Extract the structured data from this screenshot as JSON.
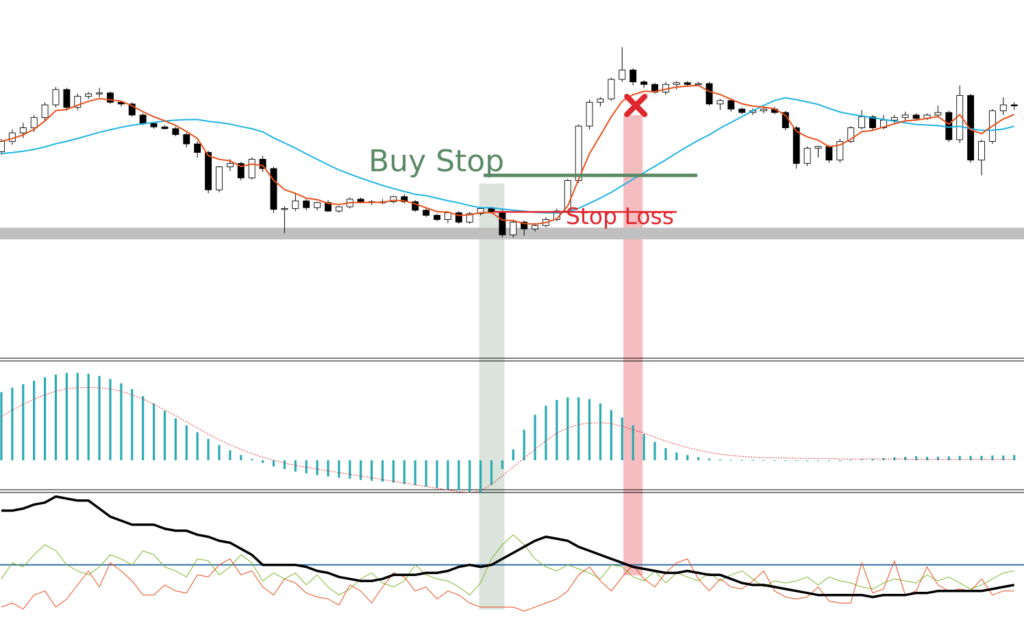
{
  "colors": {
    "background": "#ffffff",
    "candle_body_bull": "#ffffff",
    "candle_body_bear": "#000000",
    "candle_outline": "#000000",
    "ema_fast": "#e8501a",
    "ema_slow": "#1fb3e6",
    "support_band": "#c0c0c0",
    "entry_highlight": "#d8e3da",
    "exit_highlight": "#f4b9bd",
    "buy_stop": "#5a8a65",
    "stop_loss": "#e0262e",
    "macd_histogram": "#2aabb0",
    "macd_signal": "#d93030",
    "adx_main": "#000000",
    "adx_plus_di": "#7fb52b",
    "adx_minus_di": "#e84a1a",
    "adx_level": "#2f6fa6",
    "panel_separator": "#000000"
  },
  "annotations": {
    "buy_stop_label": "Buy Stop",
    "stop_loss_label": "Stop Loss",
    "exit_marker_icon": "cross-icon"
  },
  "chart_data": [
    {
      "type": "candlestick",
      "panel": "price",
      "bar_count": 94,
      "series": [
        {
          "kind": "candles",
          "ohlc": [
            [
              100,
              101.5,
              99.6,
              101.2
            ],
            [
              101.2,
              102.6,
              100.8,
              102.2
            ],
            [
              102.2,
              103.4,
              101.6,
              102.8
            ],
            [
              102.8,
              104.3,
              102.3,
              104
            ],
            [
              104,
              105.8,
              103.6,
              105.5
            ],
            [
              105.5,
              107.6,
              105.2,
              107.3
            ],
            [
              107.3,
              107.5,
              104.8,
              105.2
            ],
            [
              105.2,
              106.8,
              104.9,
              106.5
            ],
            [
              106.5,
              107,
              106.2,
              106.8
            ],
            [
              106.8,
              107.5,
              106.4,
              106.9
            ],
            [
              106.9,
              107.1,
              105.6,
              105.8
            ],
            [
              105.8,
              106,
              105.3,
              105.6
            ],
            [
              105.6,
              105.8,
              104.1,
              104.3
            ],
            [
              104.3,
              104.5,
              103.1,
              103.3
            ],
            [
              103.3,
              103.5,
              102.7,
              102.9
            ],
            [
              102.9,
              103.1,
              102.6,
              102.7
            ],
            [
              102.7,
              102.9,
              101.8,
              102
            ],
            [
              102,
              102.2,
              100.5,
              100.9
            ],
            [
              100.9,
              101.2,
              99.3,
              99.9
            ],
            [
              99.9,
              100.1,
              95.1,
              95.5
            ],
            [
              95.5,
              98.3,
              95.2,
              98.2
            ],
            [
              98.2,
              99.1,
              97.7,
              98.6
            ],
            [
              98.6,
              98.8,
              96.6,
              96.9
            ],
            [
              96.9,
              99.3,
              96.7,
              99.1
            ],
            [
              99.1,
              99.5,
              97.6,
              98
            ],
            [
              98,
              98.2,
              92.8,
              93.2
            ],
            [
              93.2,
              93.6,
              90.4,
              93.3
            ],
            [
              93.3,
              95,
              93,
              94.2
            ],
            [
              94.2,
              94.4,
              93.1,
              93.4
            ],
            [
              93.4,
              94.1,
              93.1,
              94
            ],
            [
              94,
              94.3,
              92.9,
              93
            ],
            [
              93,
              93.6,
              92.8,
              93.5
            ],
            [
              93.5,
              94.6,
              93.3,
              94.4
            ],
            [
              94.4,
              94.6,
              93.9,
              94.1
            ],
            [
              94.1,
              94.3,
              93.7,
              94
            ],
            [
              94,
              94.4,
              93.8,
              94.1
            ],
            [
              94.1,
              94.8,
              93.9,
              94.7
            ],
            [
              94.7,
              95,
              93.9,
              94.1
            ],
            [
              94.1,
              94.3,
              92.9,
              93.1
            ],
            [
              93.1,
              93.3,
              92.3,
              92.5
            ],
            [
              92.5,
              92.7,
              91.8,
              92
            ],
            [
              92,
              93,
              91.6,
              92.8
            ],
            [
              92.8,
              93,
              91.5,
              91.7
            ],
            [
              91.7,
              92.9,
              91.5,
              92.7
            ],
            [
              92.7,
              93.5,
              92.5,
              93.3
            ],
            [
              93.3,
              93.5,
              92.7,
              92.9
            ],
            [
              92.9,
              93.3,
              89.9,
              90.2
            ],
            [
              90.2,
              92,
              89.9,
              91.7
            ],
            [
              91.7,
              91.9,
              90.1,
              90.9
            ],
            [
              90.9,
              91.6,
              90.6,
              91.3
            ],
            [
              91.3,
              92.3,
              91.1,
              92
            ],
            [
              92,
              93.3,
              91.8,
              93
            ],
            [
              93,
              96.8,
              92.7,
              96.6
            ],
            [
              96.6,
              103.2,
              96.3,
              103
            ],
            [
              103,
              106.1,
              102.6,
              105.8
            ],
            [
              105.8,
              106.4,
              105.3,
              106.2
            ],
            [
              106.2,
              108.7,
              106,
              108.5
            ],
            [
              108.5,
              112.3,
              108.2,
              109.6
            ],
            [
              109.6,
              109.8,
              107.8,
              108.2
            ],
            [
              108.2,
              108.4,
              107.5,
              107.9
            ],
            [
              107.9,
              108.1,
              106.8,
              107
            ],
            [
              107,
              108.2,
              106.7,
              107.9
            ],
            [
              107.9,
              108.3,
              107.3,
              108.1
            ],
            [
              108.1,
              108.3,
              107.6,
              107.9
            ],
            [
              107.9,
              108.2,
              107.7,
              108
            ],
            [
              108,
              108.2,
              105.4,
              105.6
            ],
            [
              105.6,
              106.2,
              104.9,
              106
            ],
            [
              106,
              106.2,
              104.7,
              105
            ],
            [
              105,
              105.2,
              104.4,
              104.6
            ],
            [
              104.6,
              105.1,
              104.3,
              104.8
            ],
            [
              104.8,
              105.2,
              104.5,
              105
            ],
            [
              105,
              105.3,
              104.4,
              104.6
            ],
            [
              104.6,
              104.8,
              102.5,
              102.8
            ],
            [
              102.8,
              103,
              98,
              98.6
            ],
            [
              98.6,
              100.6,
              98.3,
              100.4
            ],
            [
              100.4,
              100.7,
              99.3,
              100.6
            ],
            [
              100.6,
              100.8,
              98.7,
              99
            ],
            [
              99,
              101.5,
              98.7,
              101.2
            ],
            [
              101.2,
              103,
              101,
              102.8
            ],
            [
              102.8,
              104.9,
              102.6,
              104.1
            ],
            [
              104.1,
              104.3,
              102.5,
              102.8
            ],
            [
              102.8,
              104.3,
              102.6,
              103.7
            ],
            [
              103.7,
              104.3,
              103.3,
              104
            ],
            [
              104,
              104.7,
              103.7,
              104.3
            ],
            [
              104.3,
              104.5,
              103.6,
              103.9
            ],
            [
              103.9,
              104.5,
              103.7,
              104.3
            ],
            [
              104.3,
              105.4,
              104,
              104.6
            ],
            [
              104.6,
              104.8,
              101.1,
              101.4
            ],
            [
              101.4,
              107.8,
              101,
              106.6
            ],
            [
              106.6,
              106.8,
              98.7,
              99
            ],
            [
              99,
              101.4,
              97.2,
              101.2
            ],
            [
              101.2,
              105,
              100.9,
              104.8
            ],
            [
              104.8,
              106.4,
              104.3,
              105.5
            ],
            [
              105.5,
              105.8,
              104.9,
              105.4
            ]
          ]
        },
        {
          "name": "",
          "kind": "ema",
          "period": 5
        },
        {
          "name": "",
          "kind": "sma",
          "period": 20
        }
      ],
      "support_level": 90.4,
      "buy_stop_level": 97.2,
      "stop_loss_level": 92.9,
      "entry_bar": 45,
      "exit_bar": 58
    },
    {
      "type": "bar",
      "panel": "macd",
      "histogram": [
        1.56,
        1.66,
        1.74,
        1.82,
        1.9,
        1.96,
        2,
        2,
        1.98,
        1.93,
        1.86,
        1.76,
        1.63,
        1.47,
        1.3,
        1.13,
        0.96,
        0.8,
        0.64,
        0.49,
        0.35,
        0.23,
        0.12,
        0.03,
        -0.06,
        -0.14,
        -0.2,
        -0.26,
        -0.3,
        -0.34,
        -0.37,
        -0.4,
        -0.42,
        -0.45,
        -0.47,
        -0.49,
        -0.51,
        -0.54,
        -0.57,
        -0.6,
        -0.63,
        -0.66,
        -0.69,
        -0.73,
        -0.76,
        -0.56,
        -0.2,
        0.25,
        0.7,
        1.04,
        1.25,
        1.38,
        1.44,
        1.44,
        1.4,
        1.3,
        1.15,
        0.98,
        0.8,
        0.6,
        0.42,
        0.28,
        0.18,
        0.12,
        0.07,
        0.04,
        0.02,
        0.01,
        0.01,
        0.01,
        0,
        0,
        0,
        0,
        0,
        0,
        0,
        0,
        0.01,
        0.02,
        0.03,
        0.05,
        0.07,
        0.08,
        0.09,
        0.08,
        0.08,
        0.09,
        0.1,
        0.1,
        0.1,
        0.11,
        0.11,
        0.12
      ],
      "signal": [
        1,
        1.15,
        1.28,
        1.4,
        1.5,
        1.58,
        1.64,
        1.66,
        1.67,
        1.66,
        1.63,
        1.58,
        1.5,
        1.4,
        1.28,
        1.15,
        1.02,
        0.88,
        0.74,
        0.6,
        0.47,
        0.35,
        0.25,
        0.15,
        0.07,
        0,
        -0.06,
        -0.12,
        -0.16,
        -0.2,
        -0.24,
        -0.28,
        -0.32,
        -0.36,
        -0.4,
        -0.44,
        -0.48,
        -0.52,
        -0.56,
        -0.6,
        -0.64,
        -0.68,
        -0.72,
        -0.74,
        -0.7,
        -0.55,
        -0.36,
        -0.15,
        0.05,
        0.25,
        0.45,
        0.62,
        0.74,
        0.82,
        0.85,
        0.86,
        0.84,
        0.78,
        0.7,
        0.62,
        0.53,
        0.44,
        0.36,
        0.29,
        0.23,
        0.18,
        0.14,
        0.11,
        0.09,
        0.07,
        0.06,
        0.06,
        0.05,
        0.05,
        0.04,
        0.04,
        0.04,
        0.03,
        0.03,
        0.03,
        0.03,
        0.03,
        0.03,
        0.03,
        0.02,
        0.02,
        0.02,
        0.02,
        0.02,
        0.02,
        0.02,
        0.02,
        0.02,
        0.02
      ],
      "ylim": [
        -0.8,
        2.2
      ]
    },
    {
      "type": "line",
      "panel": "adx",
      "ylim": [
        0,
        60
      ],
      "level": 25,
      "series": [
        {
          "name": "",
          "values": [
            52,
            52,
            53,
            55,
            56,
            59,
            58,
            57,
            57,
            53,
            49,
            47,
            45,
            45,
            45,
            43,
            42,
            42,
            40,
            39,
            37,
            36,
            33,
            30,
            25,
            25,
            25,
            25,
            24,
            22,
            21,
            19,
            18,
            17,
            17,
            18,
            20,
            20,
            20,
            21,
            21,
            22,
            24,
            25,
            24,
            25,
            28,
            31,
            34,
            37,
            39,
            38,
            37,
            34,
            32,
            30,
            28,
            26,
            24,
            23,
            22,
            21,
            21,
            22,
            21,
            20,
            20,
            18,
            16,
            15,
            15,
            14,
            13,
            12,
            11,
            10,
            10,
            10,
            10,
            10,
            9,
            10,
            10,
            10,
            11,
            11,
            12,
            12,
            12,
            12,
            12,
            13,
            14,
            15
          ]
        },
        {
          "name": "",
          "values": [
            18,
            26,
            24,
            30,
            35,
            32,
            25,
            22,
            20,
            24,
            30,
            28,
            25,
            32,
            30,
            24,
            22,
            19,
            28,
            27,
            20,
            24,
            30,
            26,
            17,
            21,
            18,
            21,
            15,
            20,
            14,
            10,
            13,
            18,
            21,
            16,
            14,
            17,
            25,
            20,
            18,
            17,
            14,
            10,
            16,
            28,
            35,
            40,
            35,
            28,
            24,
            22,
            25,
            23,
            21,
            18,
            25,
            24,
            19,
            17,
            22,
            16,
            21,
            19,
            17,
            21,
            17,
            20,
            22,
            18,
            14,
            17,
            16,
            17,
            19,
            15,
            19,
            17,
            16,
            14,
            13,
            16,
            18,
            17,
            16,
            20,
            17,
            19,
            16,
            13,
            15,
            18,
            21,
            22
          ]
        },
        {
          "name": "",
          "values": [
            4,
            6,
            3,
            10,
            12,
            4,
            8,
            15,
            22,
            14,
            26,
            22,
            17,
            10,
            10,
            15,
            12,
            11,
            20,
            19,
            25,
            28,
            20,
            22,
            14,
            10,
            18,
            16,
            11,
            9,
            8,
            5,
            15,
            12,
            6,
            14,
            21,
            19,
            12,
            14,
            8,
            12,
            10,
            6,
            4,
            4,
            4,
            4,
            2,
            4,
            6,
            8,
            12,
            20,
            24,
            17,
            12,
            19,
            25,
            18,
            14,
            21,
            26,
            28,
            18,
            12,
            18,
            14,
            13,
            17,
            22,
            12,
            9,
            8,
            9,
            14,
            7,
            6,
            6,
            26,
            11,
            13,
            27,
            10,
            12,
            24,
            15,
            12,
            13,
            12,
            18,
            10,
            12,
            12
          ]
        }
      ]
    }
  ]
}
